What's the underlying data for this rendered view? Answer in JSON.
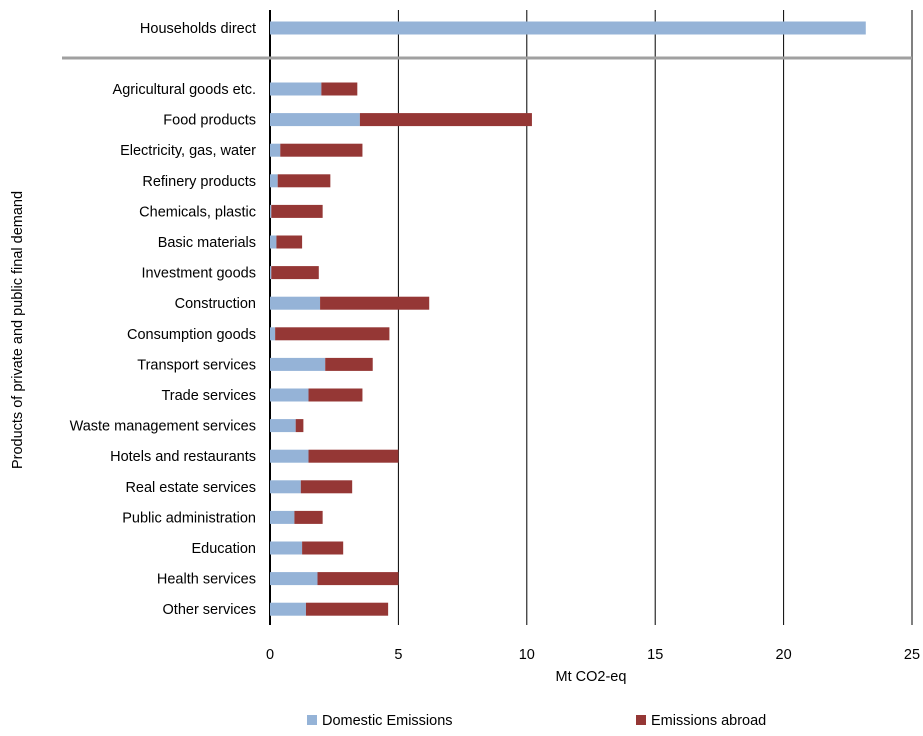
{
  "chart_data": {
    "type": "bar",
    "orientation": "horizontal",
    "stacked": true,
    "title": "",
    "xlabel": "Mt CO2-eq",
    "ylabel": "Products of private and  public final demand",
    "xlim": [
      0,
      25
    ],
    "xticks": [
      "0",
      "5",
      "10",
      "15",
      "20",
      "25"
    ],
    "grid": "vertical",
    "legend_position": "bottom",
    "top_group": {
      "categories": [
        "Households direct"
      ],
      "series": [
        {
          "name": "Domestic Emissions",
          "values": [
            23.2
          ]
        },
        {
          "name": "Emissions abroad",
          "values": [
            0
          ]
        }
      ]
    },
    "categories": [
      "Agricultural goods etc.",
      "Food products",
      "Electricity, gas, water",
      "Refinery products",
      "Chemicals, plastic",
      "Basic materials",
      "Investment goods",
      "Construction",
      "Consumption goods",
      "Transport services",
      "Trade services",
      "Waste management services",
      "Hotels and restaurants",
      "Real estate services",
      "Public administration",
      "Education",
      "Health services",
      "Other services"
    ],
    "series": [
      {
        "name": "Domestic Emissions",
        "color": "#95b3d7",
        "values": [
          2.0,
          3.5,
          0.4,
          0.3,
          0.05,
          0.25,
          0.05,
          1.95,
          0.2,
          2.15,
          1.5,
          1.0,
          1.5,
          1.2,
          0.95,
          1.25,
          1.85,
          1.4
        ]
      },
      {
        "name": "Emissions abroad",
        "color": "#953735",
        "values": [
          1.4,
          6.7,
          3.2,
          2.05,
          2.0,
          1.0,
          1.85,
          4.25,
          4.45,
          1.85,
          2.1,
          0.3,
          3.5,
          2.0,
          1.1,
          1.6,
          3.15,
          3.2
        ]
      }
    ]
  }
}
